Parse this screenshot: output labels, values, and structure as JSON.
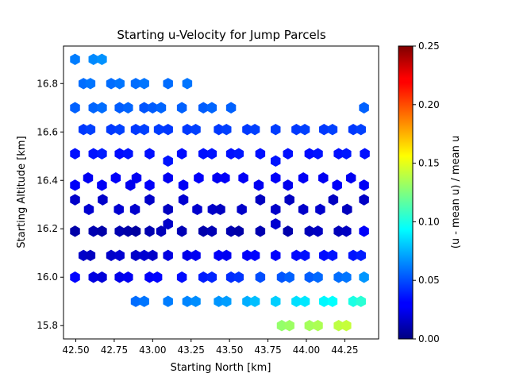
{
  "chart_data": {
    "type": "hexbin",
    "title": "Starting u-Velocity for Jump Parcels",
    "xlabel": "Starting North [km]",
    "ylabel": "Starting Altitude [km]",
    "colorbar_label": "(u - mean u) / mean u",
    "colormap": "jet",
    "xlim": [
      42.42,
      44.47
    ],
    "ylim": [
      15.745,
      16.955
    ],
    "clim": [
      0.0,
      0.25
    ],
    "x_ticks": [
      42.5,
      42.75,
      43.0,
      43.25,
      43.5,
      43.75,
      44.0,
      44.25
    ],
    "x_tick_labels": [
      "42.50",
      "42.75",
      "43.00",
      "43.25",
      "43.50",
      "43.75",
      "44.00",
      "44.25"
    ],
    "y_ticks": [
      15.8,
      16.0,
      16.2,
      16.4,
      16.6,
      16.8
    ],
    "y_tick_labels": [
      "15.8",
      "16.0",
      "16.2",
      "16.4",
      "16.6",
      "16.8"
    ],
    "c_ticks": [
      0.0,
      0.05,
      0.1,
      0.15,
      0.2,
      0.25
    ],
    "c_tick_labels": [
      "0.00",
      "0.05",
      "0.10",
      "0.15",
      "0.20",
      "0.25"
    ],
    "points": [
      {
        "x": 42.495,
        "y": 16.9,
        "v": 0.062
      },
      {
        "x": 42.615,
        "y": 16.9,
        "v": 0.065
      },
      {
        "x": 42.67,
        "y": 16.9,
        "v": 0.067
      },
      {
        "x": 42.55,
        "y": 16.8,
        "v": 0.058
      },
      {
        "x": 42.595,
        "y": 16.8,
        "v": 0.06
      },
      {
        "x": 42.73,
        "y": 16.8,
        "v": 0.058
      },
      {
        "x": 42.785,
        "y": 16.8,
        "v": 0.06
      },
      {
        "x": 42.89,
        "y": 16.8,
        "v": 0.058
      },
      {
        "x": 42.945,
        "y": 16.8,
        "v": 0.06
      },
      {
        "x": 43.1,
        "y": 16.8,
        "v": 0.058
      },
      {
        "x": 43.225,
        "y": 16.8,
        "v": 0.06
      },
      {
        "x": 42.495,
        "y": 16.7,
        "v": 0.055
      },
      {
        "x": 42.615,
        "y": 16.7,
        "v": 0.056
      },
      {
        "x": 42.67,
        "y": 16.7,
        "v": 0.058
      },
      {
        "x": 42.785,
        "y": 16.7,
        "v": 0.054
      },
      {
        "x": 42.84,
        "y": 16.7,
        "v": 0.056
      },
      {
        "x": 42.945,
        "y": 16.7,
        "v": 0.052
      },
      {
        "x": 43.0,
        "y": 16.7,
        "v": 0.054
      },
      {
        "x": 43.055,
        "y": 16.7,
        "v": 0.056
      },
      {
        "x": 43.19,
        "y": 16.7,
        "v": 0.055
      },
      {
        "x": 43.33,
        "y": 16.7,
        "v": 0.054
      },
      {
        "x": 43.385,
        "y": 16.7,
        "v": 0.056
      },
      {
        "x": 43.51,
        "y": 16.7,
        "v": 0.055
      },
      {
        "x": 44.375,
        "y": 16.7,
        "v": 0.055
      },
      {
        "x": 42.55,
        "y": 16.61,
        "v": 0.045
      },
      {
        "x": 42.595,
        "y": 16.61,
        "v": 0.047
      },
      {
        "x": 42.73,
        "y": 16.61,
        "v": 0.045
      },
      {
        "x": 42.785,
        "y": 16.61,
        "v": 0.047
      },
      {
        "x": 42.89,
        "y": 16.61,
        "v": 0.045
      },
      {
        "x": 42.945,
        "y": 16.61,
        "v": 0.047
      },
      {
        "x": 43.04,
        "y": 16.61,
        "v": 0.046
      },
      {
        "x": 43.1,
        "y": 16.61,
        "v": 0.045
      },
      {
        "x": 43.225,
        "y": 16.61,
        "v": 0.045
      },
      {
        "x": 43.28,
        "y": 16.61,
        "v": 0.047
      },
      {
        "x": 43.43,
        "y": 16.61,
        "v": 0.045
      },
      {
        "x": 43.48,
        "y": 16.61,
        "v": 0.047
      },
      {
        "x": 43.615,
        "y": 16.61,
        "v": 0.045
      },
      {
        "x": 43.665,
        "y": 16.61,
        "v": 0.047
      },
      {
        "x": 43.8,
        "y": 16.61,
        "v": 0.046
      },
      {
        "x": 43.935,
        "y": 16.61,
        "v": 0.045
      },
      {
        "x": 43.99,
        "y": 16.61,
        "v": 0.047
      },
      {
        "x": 44.115,
        "y": 16.61,
        "v": 0.045
      },
      {
        "x": 44.17,
        "y": 16.61,
        "v": 0.047
      },
      {
        "x": 44.305,
        "y": 16.61,
        "v": 0.045
      },
      {
        "x": 44.355,
        "y": 16.61,
        "v": 0.047
      },
      {
        "x": 42.495,
        "y": 16.51,
        "v": 0.035
      },
      {
        "x": 42.615,
        "y": 16.51,
        "v": 0.036
      },
      {
        "x": 42.67,
        "y": 16.51,
        "v": 0.038
      },
      {
        "x": 42.785,
        "y": 16.51,
        "v": 0.034
      },
      {
        "x": 42.84,
        "y": 16.51,
        "v": 0.036
      },
      {
        "x": 42.98,
        "y": 16.51,
        "v": 0.035
      },
      {
        "x": 43.1,
        "y": 16.48,
        "v": 0.036
      },
      {
        "x": 43.19,
        "y": 16.51,
        "v": 0.034
      },
      {
        "x": 43.33,
        "y": 16.51,
        "v": 0.035
      },
      {
        "x": 43.385,
        "y": 16.51,
        "v": 0.036
      },
      {
        "x": 43.51,
        "y": 16.51,
        "v": 0.035
      },
      {
        "x": 43.56,
        "y": 16.51,
        "v": 0.037
      },
      {
        "x": 43.7,
        "y": 16.51,
        "v": 0.035
      },
      {
        "x": 43.8,
        "y": 16.48,
        "v": 0.036
      },
      {
        "x": 43.88,
        "y": 16.51,
        "v": 0.035
      },
      {
        "x": 44.02,
        "y": 16.51,
        "v": 0.034
      },
      {
        "x": 44.075,
        "y": 16.51,
        "v": 0.036
      },
      {
        "x": 44.21,
        "y": 16.51,
        "v": 0.035
      },
      {
        "x": 44.26,
        "y": 16.51,
        "v": 0.037
      },
      {
        "x": 44.38,
        "y": 16.51,
        "v": 0.035
      },
      {
        "x": 42.495,
        "y": 16.38,
        "v": 0.03
      },
      {
        "x": 42.58,
        "y": 16.41,
        "v": 0.028
      },
      {
        "x": 42.67,
        "y": 16.38,
        "v": 0.029
      },
      {
        "x": 42.76,
        "y": 16.41,
        "v": 0.03
      },
      {
        "x": 42.855,
        "y": 16.38,
        "v": 0.027
      },
      {
        "x": 42.895,
        "y": 16.41,
        "v": 0.028
      },
      {
        "x": 42.98,
        "y": 16.38,
        "v": 0.03
      },
      {
        "x": 43.1,
        "y": 16.41,
        "v": 0.028
      },
      {
        "x": 43.2,
        "y": 16.38,
        "v": 0.029
      },
      {
        "x": 43.3,
        "y": 16.41,
        "v": 0.03
      },
      {
        "x": 43.42,
        "y": 16.41,
        "v": 0.028
      },
      {
        "x": 43.47,
        "y": 16.41,
        "v": 0.03
      },
      {
        "x": 43.59,
        "y": 16.41,
        "v": 0.029
      },
      {
        "x": 43.69,
        "y": 16.38,
        "v": 0.028
      },
      {
        "x": 43.8,
        "y": 16.41,
        "v": 0.03
      },
      {
        "x": 43.88,
        "y": 16.38,
        "v": 0.027
      },
      {
        "x": 43.98,
        "y": 16.41,
        "v": 0.029
      },
      {
        "x": 44.11,
        "y": 16.41,
        "v": 0.028
      },
      {
        "x": 44.2,
        "y": 16.38,
        "v": 0.03
      },
      {
        "x": 44.29,
        "y": 16.41,
        "v": 0.028
      },
      {
        "x": 44.375,
        "y": 16.38,
        "v": 0.029
      },
      {
        "x": 42.495,
        "y": 16.32,
        "v": 0.018
      },
      {
        "x": 42.585,
        "y": 16.28,
        "v": 0.02
      },
      {
        "x": 42.675,
        "y": 16.32,
        "v": 0.018
      },
      {
        "x": 42.78,
        "y": 16.28,
        "v": 0.02
      },
      {
        "x": 42.885,
        "y": 16.28,
        "v": 0.019
      },
      {
        "x": 42.98,
        "y": 16.32,
        "v": 0.018
      },
      {
        "x": 43.1,
        "y": 16.28,
        "v": 0.016
      },
      {
        "x": 43.1,
        "y": 16.22,
        "v": 0.018
      },
      {
        "x": 43.2,
        "y": 16.32,
        "v": 0.02
      },
      {
        "x": 43.29,
        "y": 16.28,
        "v": 0.019
      },
      {
        "x": 43.39,
        "y": 16.28,
        "v": 0.018
      },
      {
        "x": 43.44,
        "y": 16.28,
        "v": 0.016
      },
      {
        "x": 43.58,
        "y": 16.28,
        "v": 0.018
      },
      {
        "x": 43.7,
        "y": 16.32,
        "v": 0.016
      },
      {
        "x": 43.8,
        "y": 16.28,
        "v": 0.018
      },
      {
        "x": 43.8,
        "y": 16.22,
        "v": 0.02
      },
      {
        "x": 43.89,
        "y": 16.32,
        "v": 0.016
      },
      {
        "x": 43.98,
        "y": 16.28,
        "v": 0.018
      },
      {
        "x": 44.09,
        "y": 16.28,
        "v": 0.019
      },
      {
        "x": 44.175,
        "y": 16.32,
        "v": 0.016
      },
      {
        "x": 44.265,
        "y": 16.28,
        "v": 0.015
      },
      {
        "x": 44.375,
        "y": 16.32,
        "v": 0.017
      },
      {
        "x": 42.495,
        "y": 16.19,
        "v": 0.01
      },
      {
        "x": 42.615,
        "y": 16.19,
        "v": 0.012
      },
      {
        "x": 42.67,
        "y": 16.19,
        "v": 0.01
      },
      {
        "x": 42.785,
        "y": 16.19,
        "v": 0.012
      },
      {
        "x": 42.84,
        "y": 16.19,
        "v": 0.01
      },
      {
        "x": 42.89,
        "y": 16.19,
        "v": 0.008
      },
      {
        "x": 42.98,
        "y": 16.19,
        "v": 0.012
      },
      {
        "x": 43.055,
        "y": 16.19,
        "v": 0.014
      },
      {
        "x": 43.19,
        "y": 16.19,
        "v": 0.013
      },
      {
        "x": 43.33,
        "y": 16.19,
        "v": 0.011
      },
      {
        "x": 43.385,
        "y": 16.19,
        "v": 0.013
      },
      {
        "x": 43.51,
        "y": 16.19,
        "v": 0.012
      },
      {
        "x": 43.56,
        "y": 16.19,
        "v": 0.01
      },
      {
        "x": 43.7,
        "y": 16.19,
        "v": 0.012
      },
      {
        "x": 43.88,
        "y": 16.19,
        "v": 0.011
      },
      {
        "x": 44.02,
        "y": 16.19,
        "v": 0.014
      },
      {
        "x": 44.075,
        "y": 16.19,
        "v": 0.016
      },
      {
        "x": 44.21,
        "y": 16.19,
        "v": 0.014
      },
      {
        "x": 44.26,
        "y": 16.19,
        "v": 0.016
      },
      {
        "x": 44.375,
        "y": 16.19,
        "v": 0.03
      },
      {
        "x": 42.55,
        "y": 16.09,
        "v": 0.018
      },
      {
        "x": 42.595,
        "y": 16.09,
        "v": 0.016
      },
      {
        "x": 42.73,
        "y": 16.09,
        "v": 0.018
      },
      {
        "x": 42.785,
        "y": 16.09,
        "v": 0.02
      },
      {
        "x": 42.89,
        "y": 16.09,
        "v": 0.018
      },
      {
        "x": 42.945,
        "y": 16.09,
        "v": 0.02
      },
      {
        "x": 43.0,
        "y": 16.09,
        "v": 0.018
      },
      {
        "x": 43.1,
        "y": 16.09,
        "v": 0.024
      },
      {
        "x": 43.225,
        "y": 16.09,
        "v": 0.026
      },
      {
        "x": 43.28,
        "y": 16.09,
        "v": 0.028
      },
      {
        "x": 43.43,
        "y": 16.09,
        "v": 0.03
      },
      {
        "x": 43.48,
        "y": 16.09,
        "v": 0.028
      },
      {
        "x": 43.615,
        "y": 16.09,
        "v": 0.03
      },
      {
        "x": 43.665,
        "y": 16.09,
        "v": 0.032
      },
      {
        "x": 43.8,
        "y": 16.09,
        "v": 0.031
      },
      {
        "x": 43.935,
        "y": 16.09,
        "v": 0.033
      },
      {
        "x": 43.99,
        "y": 16.09,
        "v": 0.035
      },
      {
        "x": 44.115,
        "y": 16.09,
        "v": 0.034
      },
      {
        "x": 44.17,
        "y": 16.09,
        "v": 0.036
      },
      {
        "x": 44.305,
        "y": 16.09,
        "v": 0.036
      },
      {
        "x": 44.355,
        "y": 16.09,
        "v": 0.038
      },
      {
        "x": 42.495,
        "y": 16.0,
        "v": 0.032
      },
      {
        "x": 42.615,
        "y": 16.0,
        "v": 0.024
      },
      {
        "x": 42.67,
        "y": 16.0,
        "v": 0.022
      },
      {
        "x": 42.785,
        "y": 16.0,
        "v": 0.026
      },
      {
        "x": 42.84,
        "y": 16.0,
        "v": 0.028
      },
      {
        "x": 42.98,
        "y": 16.0,
        "v": 0.03
      },
      {
        "x": 43.03,
        "y": 16.0,
        "v": 0.032
      },
      {
        "x": 43.19,
        "y": 16.0,
        "v": 0.034
      },
      {
        "x": 43.33,
        "y": 16.0,
        "v": 0.038
      },
      {
        "x": 43.385,
        "y": 16.0,
        "v": 0.04
      },
      {
        "x": 43.51,
        "y": 16.0,
        "v": 0.042
      },
      {
        "x": 43.56,
        "y": 16.0,
        "v": 0.044
      },
      {
        "x": 43.7,
        "y": 16.0,
        "v": 0.05
      },
      {
        "x": 43.84,
        "y": 16.0,
        "v": 0.052
      },
      {
        "x": 43.89,
        "y": 16.0,
        "v": 0.055
      },
      {
        "x": 44.02,
        "y": 16.0,
        "v": 0.054
      },
      {
        "x": 44.075,
        "y": 16.0,
        "v": 0.057
      },
      {
        "x": 44.21,
        "y": 16.0,
        "v": 0.058
      },
      {
        "x": 44.26,
        "y": 16.0,
        "v": 0.06
      },
      {
        "x": 44.375,
        "y": 16.0,
        "v": 0.068
      },
      {
        "x": 42.89,
        "y": 15.9,
        "v": 0.058
      },
      {
        "x": 42.945,
        "y": 15.9,
        "v": 0.06
      },
      {
        "x": 43.1,
        "y": 15.9,
        "v": 0.062
      },
      {
        "x": 43.225,
        "y": 15.9,
        "v": 0.064
      },
      {
        "x": 43.28,
        "y": 15.9,
        "v": 0.066
      },
      {
        "x": 43.43,
        "y": 15.9,
        "v": 0.068
      },
      {
        "x": 43.48,
        "y": 15.9,
        "v": 0.07
      },
      {
        "x": 43.615,
        "y": 15.9,
        "v": 0.074
      },
      {
        "x": 43.665,
        "y": 15.9,
        "v": 0.078
      },
      {
        "x": 43.8,
        "y": 15.9,
        "v": 0.082
      },
      {
        "x": 43.935,
        "y": 15.9,
        "v": 0.086
      },
      {
        "x": 43.99,
        "y": 15.9,
        "v": 0.088
      },
      {
        "x": 44.115,
        "y": 15.9,
        "v": 0.092
      },
      {
        "x": 44.17,
        "y": 15.9,
        "v": 0.094
      },
      {
        "x": 44.305,
        "y": 15.9,
        "v": 0.1
      },
      {
        "x": 44.355,
        "y": 15.9,
        "v": 0.104
      },
      {
        "x": 43.84,
        "y": 15.8,
        "v": 0.13
      },
      {
        "x": 43.89,
        "y": 15.8,
        "v": 0.132
      },
      {
        "x": 44.02,
        "y": 15.8,
        "v": 0.134
      },
      {
        "x": 44.075,
        "y": 15.8,
        "v": 0.136
      },
      {
        "x": 44.21,
        "y": 15.8,
        "v": 0.14
      },
      {
        "x": 44.26,
        "y": 15.8,
        "v": 0.142
      }
    ]
  }
}
